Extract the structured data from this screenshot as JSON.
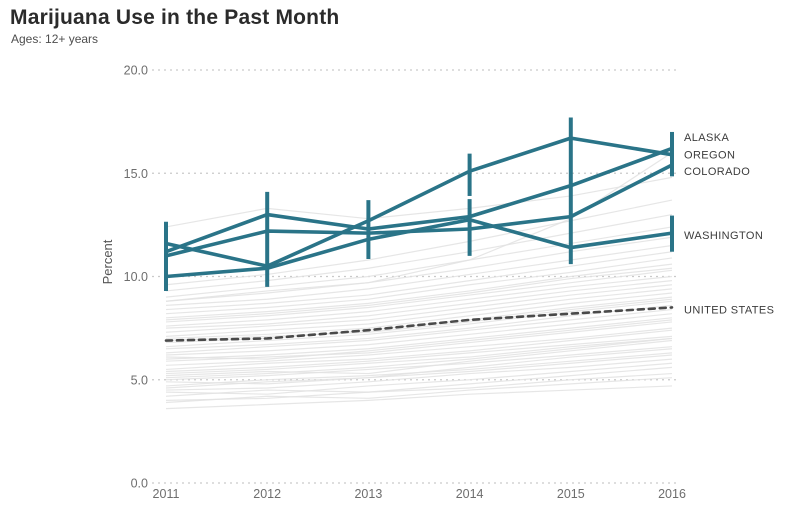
{
  "header": {
    "title": "Marijuana Use in the Past Month",
    "subtitle": "Ages: 12+ years"
  },
  "chart_data": {
    "type": "line",
    "title": "Marijuana Use in the Past Month",
    "subtitle": "Ages: 12+ years",
    "xlabel": "",
    "ylabel": "Percent",
    "x": [
      2011,
      2012,
      2013,
      2014,
      2015,
      2016
    ],
    "ylim": [
      0,
      20
    ],
    "yticks": [
      0,
      5,
      10,
      15,
      20
    ],
    "ytick_labels": [
      "0.0",
      "5.0",
      "10.0",
      "15.0",
      "20.0"
    ],
    "grid": "horizontal-dashed",
    "legend_position": "right-end-labels",
    "series": [
      {
        "name": "ALASKA",
        "values": [
          11.2,
          13.0,
          12.3,
          12.9,
          14.4,
          16.2
        ],
        "color": "#2a7488",
        "style": "solid",
        "label_value": 16.75
      },
      {
        "name": "OREGON",
        "values": [
          11.6,
          10.5,
          12.7,
          15.1,
          16.7,
          15.9
        ],
        "color": "#2a7488",
        "style": "solid",
        "label_value": 15.9
      },
      {
        "name": "COLORADO",
        "values": [
          11.0,
          12.2,
          12.1,
          12.3,
          12.9,
          15.4
        ],
        "color": "#2a7488",
        "style": "solid",
        "label_value": 15.1
      },
      {
        "name": "WASHINGTON",
        "values": [
          10.0,
          10.4,
          11.8,
          12.75,
          11.4,
          12.1
        ],
        "color": "#2a7488",
        "style": "solid",
        "label_value": 12.0
      },
      {
        "name": "UNITED STATES",
        "values": [
          6.9,
          7.0,
          7.4,
          7.9,
          8.2,
          8.5
        ],
        "color": "#4a4a4a",
        "style": "dashed",
        "label_value": 8.4
      }
    ],
    "error_bars": [
      {
        "year": 2011,
        "ranges": [
          [
            9.3,
            12.65
          ]
        ]
      },
      {
        "year": 2012,
        "ranges": [
          [
            9.5,
            14.1
          ]
        ]
      },
      {
        "year": 2013,
        "ranges": [
          [
            10.85,
            13.7
          ]
        ]
      },
      {
        "year": 2014,
        "ranges": [
          [
            13.9,
            15.95
          ],
          [
            11.0,
            13.75
          ]
        ]
      },
      {
        "year": 2015,
        "ranges": [
          [
            10.6,
            17.7
          ]
        ]
      },
      {
        "year": 2016,
        "ranges": [
          [
            14.85,
            17.0
          ],
          [
            11.2,
            12.95
          ]
        ]
      }
    ],
    "background_series": [
      [
        3.6,
        3.8,
        4.0,
        4.3,
        4.5,
        4.7
      ],
      [
        4.0,
        4.1,
        4.4,
        4.6,
        5.0,
        5.3
      ],
      [
        4.2,
        4.5,
        4.4,
        4.8,
        5.2,
        5.6
      ],
      [
        4.5,
        4.6,
        4.9,
        5.3,
        5.6,
        6.0
      ],
      [
        4.7,
        5.0,
        5.2,
        5.5,
        5.9,
        6.3
      ],
      [
        4.9,
        4.8,
        5.1,
        5.6,
        6.1,
        6.5
      ],
      [
        5.0,
        5.2,
        5.5,
        5.8,
        6.2,
        6.6
      ],
      [
        5.2,
        5.4,
        5.3,
        5.9,
        6.4,
        6.9
      ],
      [
        5.4,
        5.6,
        5.9,
        6.3,
        6.7,
        7.1
      ],
      [
        5.5,
        5.8,
        6.0,
        6.4,
        6.9,
        7.4
      ],
      [
        5.7,
        5.9,
        6.2,
        6.6,
        7.0,
        7.5
      ],
      [
        5.9,
        6.1,
        6.3,
        6.8,
        7.3,
        7.8
      ],
      [
        6.0,
        6.2,
        6.5,
        7.0,
        7.5,
        8.0
      ],
      [
        6.2,
        6.4,
        6.7,
        7.2,
        7.7,
        8.2
      ],
      [
        6.3,
        6.6,
        6.9,
        7.4,
        7.9,
        8.4
      ],
      [
        6.5,
        6.7,
        7.0,
        7.5,
        8.1,
        8.6
      ],
      [
        6.6,
        6.9,
        7.2,
        7.7,
        8.3,
        8.8
      ],
      [
        6.8,
        7.0,
        7.4,
        7.9,
        8.5,
        9.0
      ],
      [
        7.0,
        7.2,
        7.5,
        8.1,
        8.7,
        9.2
      ],
      [
        7.1,
        7.4,
        7.7,
        8.3,
        8.9,
        9.4
      ],
      [
        7.3,
        7.6,
        7.9,
        8.5,
        9.1,
        9.6
      ],
      [
        7.5,
        7.7,
        8.1,
        8.7,
        9.3,
        9.8
      ],
      [
        7.6,
        7.9,
        8.3,
        8.9,
        9.5,
        10.0
      ],
      [
        7.8,
        8.1,
        8.5,
        9.1,
        9.7,
        10.3
      ],
      [
        8.0,
        8.3,
        8.7,
        9.3,
        10.0,
        10.6
      ],
      [
        8.2,
        8.5,
        8.9,
        9.6,
        10.2,
        10.9
      ],
      [
        8.4,
        8.7,
        9.1,
        9.8,
        10.5,
        11.2
      ],
      [
        8.6,
        8.9,
        9.4,
        10.1,
        10.8,
        11.5
      ],
      [
        8.8,
        9.2,
        9.7,
        10.4,
        11.2,
        11.9
      ],
      [
        9.0,
        9.5,
        10.0,
        10.8,
        11.6,
        12.4
      ],
      [
        9.3,
        9.8,
        10.4,
        11.2,
        12.1,
        13.0
      ],
      [
        9.6,
        10.1,
        10.8,
        11.7,
        12.7,
        13.7
      ],
      [
        12.4,
        13.3,
        12.8,
        13.3,
        13.9,
        14.8
      ],
      [
        8.8,
        9.3,
        9.7,
        10.8,
        12.8,
        16.0
      ],
      [
        3.9,
        4.2,
        4.1,
        4.5,
        4.8,
        5.1
      ],
      [
        4.4,
        4.3,
        4.7,
        5.0,
        5.4,
        5.8
      ],
      [
        5.1,
        5.3,
        5.6,
        6.0,
        6.5,
        7.0
      ],
      [
        6.9,
        7.1,
        7.3,
        7.8,
        8.4,
        8.9
      ],
      [
        7.9,
        8.2,
        8.6,
        9.2,
        9.9,
        10.4
      ],
      [
        6.1,
        6.0,
        6.4,
        6.9,
        7.4,
        7.9
      ],
      [
        5.3,
        5.5,
        5.8,
        6.1,
        6.6,
        7.0
      ],
      [
        4.6,
        4.9,
        5.1,
        5.4,
        5.8,
        6.2
      ]
    ]
  },
  "colors": {
    "highlight": "#2a7488",
    "us_line": "#4a4a4a",
    "gridline": "#c9c9c9",
    "background_line": "#e2e2e2",
    "axis_text": "#6e6e6e",
    "label_text": "#3c3c3c"
  }
}
